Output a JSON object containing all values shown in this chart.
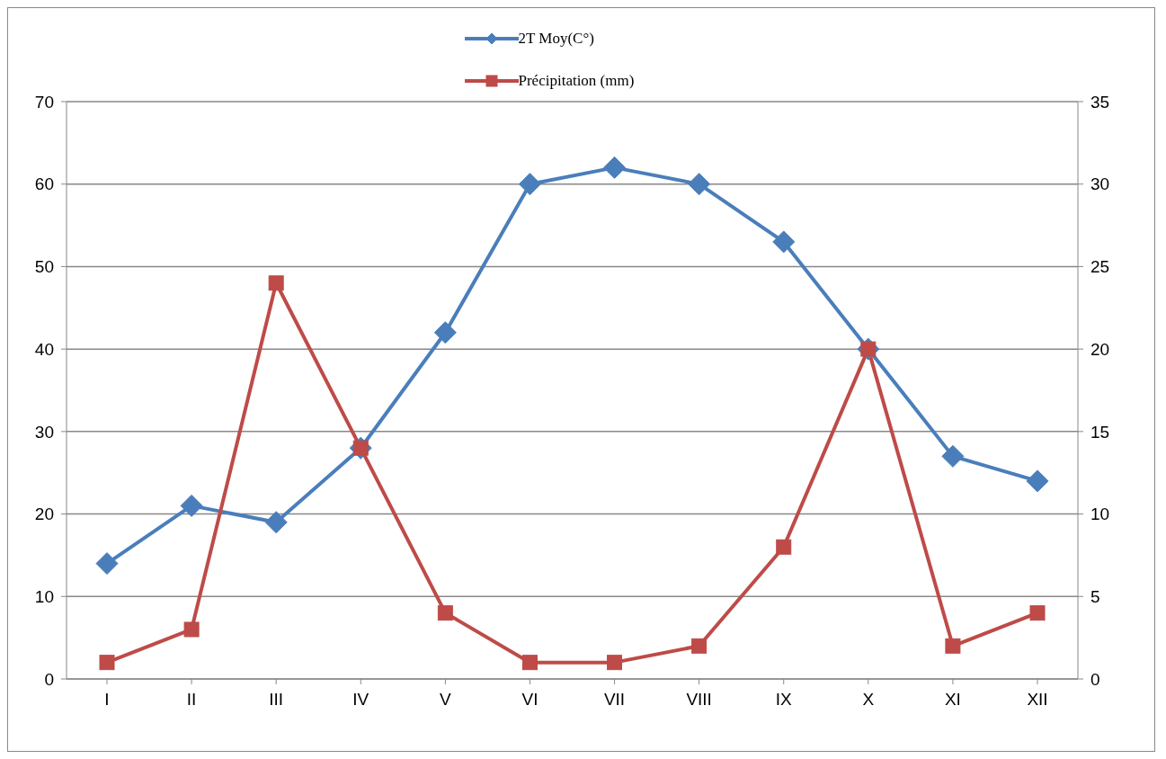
{
  "chart_data": {
    "type": "line",
    "categories": [
      "I",
      "II",
      "III",
      "IV",
      "V",
      "VI",
      "VII",
      "VIII",
      "IX",
      "X",
      "XI",
      "XII"
    ],
    "series": [
      {
        "name": "2T Moy(C°)",
        "color": "#4a7ebb",
        "marker": "diamond",
        "values": [
          14,
          21,
          19,
          28,
          42,
          60,
          62,
          60,
          53,
          40,
          27,
          24
        ]
      },
      {
        "name": "Précipitation (mm)",
        "color": "#be4b48",
        "marker": "square",
        "axis": "y2",
        "values": [
          1,
          3,
          24,
          14,
          4,
          1,
          1,
          2,
          8,
          20,
          2,
          4
        ]
      }
    ],
    "ylim": [
      0,
      70
    ],
    "yticks": [
      0,
      10,
      20,
      30,
      40,
      50,
      60,
      70
    ],
    "y2lim": [
      0,
      35
    ],
    "y2ticks": [
      0,
      5,
      10,
      15,
      20,
      25,
      30,
      35
    ],
    "grid": "y",
    "legend": "top",
    "line_style": "solid"
  }
}
